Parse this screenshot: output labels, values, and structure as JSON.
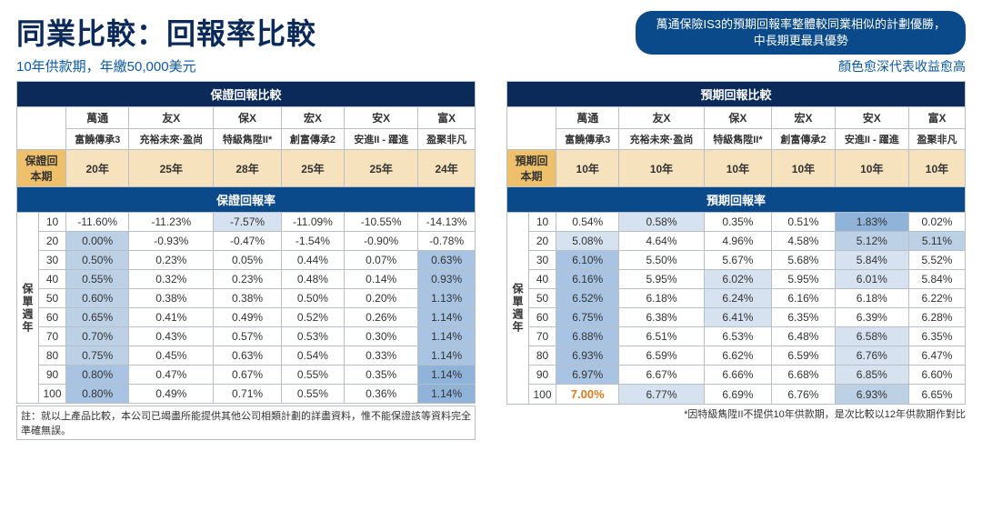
{
  "title": "同業比較：回報率比較",
  "subtitle": "10年供款期，年繳50,000美元",
  "pill_line1": "萬通保險IS3的預期回報率整體較同業相似的計劃優勝，",
  "pill_line2": "中長期更最具優勢",
  "legend_note": "顏色愈深代表收益愈高",
  "left": {
    "band": "保證回報比較",
    "companies": [
      "萬通",
      "友X",
      "保X",
      "宏X",
      "安X",
      "富X"
    ],
    "plans": [
      "富饒傳承3",
      "充裕未來·盈尚",
      "特級雋陞II*",
      "創富傳承2",
      "安進II - 躍進",
      "盈聚非凡"
    ],
    "break_even_label": "保證回本期",
    "break_even": [
      "20年",
      "25年",
      "28年",
      "25年",
      "25年",
      "24年"
    ],
    "rate_band": "保證回報率",
    "side_label": "保單週年",
    "years": [
      10,
      20,
      30,
      40,
      50,
      60,
      70,
      80,
      90,
      100
    ],
    "rows": [
      [
        "-11.60%",
        "-11.23%",
        "-7.57%",
        "-11.09%",
        "-10.55%",
        "-14.13%"
      ],
      [
        "0.00%",
        "-0.93%",
        "-0.47%",
        "-1.54%",
        "-0.90%",
        "-0.78%"
      ],
      [
        "0.50%",
        "0.23%",
        "0.05%",
        "0.44%",
        "0.07%",
        "0.63%"
      ],
      [
        "0.55%",
        "0.32%",
        "0.23%",
        "0.48%",
        "0.14%",
        "0.93%"
      ],
      [
        "0.60%",
        "0.38%",
        "0.38%",
        "0.50%",
        "0.20%",
        "1.13%"
      ],
      [
        "0.65%",
        "0.41%",
        "0.49%",
        "0.52%",
        "0.26%",
        "1.14%"
      ],
      [
        "0.70%",
        "0.43%",
        "0.57%",
        "0.53%",
        "0.30%",
        "1.14%"
      ],
      [
        "0.75%",
        "0.45%",
        "0.63%",
        "0.54%",
        "0.33%",
        "1.14%"
      ],
      [
        "0.80%",
        "0.47%",
        "0.67%",
        "0.55%",
        "0.35%",
        "1.14%"
      ],
      [
        "0.80%",
        "0.49%",
        "0.71%",
        "0.55%",
        "0.36%",
        "1.14%"
      ]
    ],
    "shades": [
      [
        "#ffffff",
        "#ffffff",
        "#d6e2f0",
        "#ffffff",
        "#ffffff",
        "#ffffff"
      ],
      [
        "#bcd0e6",
        "#ffffff",
        "#ffffff",
        "#ffffff",
        "#ffffff",
        "#ffffff"
      ],
      [
        "#bcd0e6",
        "#ffffff",
        "#ffffff",
        "#ffffff",
        "#ffffff",
        "#a8c4e2"
      ],
      [
        "#bcd0e6",
        "#ffffff",
        "#ffffff",
        "#ffffff",
        "#ffffff",
        "#a8c4e2"
      ],
      [
        "#bcd0e6",
        "#ffffff",
        "#ffffff",
        "#ffffff",
        "#ffffff",
        "#a8c4e2"
      ],
      [
        "#bcd0e6",
        "#ffffff",
        "#ffffff",
        "#ffffff",
        "#ffffff",
        "#a8c4e2"
      ],
      [
        "#bcd0e6",
        "#ffffff",
        "#ffffff",
        "#ffffff",
        "#ffffff",
        "#a8c4e2"
      ],
      [
        "#bcd0e6",
        "#ffffff",
        "#ffffff",
        "#ffffff",
        "#ffffff",
        "#a8c4e2"
      ],
      [
        "#a8c4e2",
        "#ffffff",
        "#ffffff",
        "#ffffff",
        "#ffffff",
        "#8fb3d9"
      ],
      [
        "#a8c4e2",
        "#ffffff",
        "#ffffff",
        "#ffffff",
        "#ffffff",
        "#8fb3d9"
      ]
    ],
    "footnote": "註：就以上產品比較，本公司已竭盡所能提供其他公司相類計劃的詳盡資料，惟不能保證該等資料完全準確無誤。"
  },
  "right": {
    "band": "預期回報比較",
    "companies": [
      "萬通",
      "友X",
      "保X",
      "宏X",
      "安X",
      "富X"
    ],
    "plans": [
      "富饒傳承3",
      "充裕未來·盈尚",
      "特級雋陞II*",
      "創富傳承2",
      "安進II - 躍進",
      "盈聚非凡"
    ],
    "break_even_label": "預期回本期",
    "break_even": [
      "10年",
      "10年",
      "10年",
      "10年",
      "10年",
      "10年"
    ],
    "rate_band": "預期回報率",
    "side_label": "保單週年",
    "years": [
      10,
      20,
      30,
      40,
      50,
      60,
      70,
      80,
      90,
      100
    ],
    "rows": [
      [
        "0.54%",
        "0.58%",
        "0.35%",
        "0.51%",
        "1.83%",
        "0.02%"
      ],
      [
        "5.08%",
        "4.64%",
        "4.96%",
        "4.58%",
        "5.12%",
        "5.11%"
      ],
      [
        "6.10%",
        "5.50%",
        "5.67%",
        "5.68%",
        "5.84%",
        "5.52%"
      ],
      [
        "6.16%",
        "5.95%",
        "6.02%",
        "5.95%",
        "6.01%",
        "5.84%"
      ],
      [
        "6.52%",
        "6.18%",
        "6.24%",
        "6.16%",
        "6.18%",
        "6.22%"
      ],
      [
        "6.75%",
        "6.38%",
        "6.41%",
        "6.35%",
        "6.39%",
        "6.28%"
      ],
      [
        "6.88%",
        "6.51%",
        "6.53%",
        "6.48%",
        "6.58%",
        "6.35%"
      ],
      [
        "6.93%",
        "6.59%",
        "6.62%",
        "6.59%",
        "6.76%",
        "6.47%"
      ],
      [
        "6.97%",
        "6.67%",
        "6.66%",
        "6.68%",
        "6.85%",
        "6.60%"
      ],
      [
        "7.00%",
        "6.77%",
        "6.69%",
        "6.76%",
        "6.93%",
        "6.65%"
      ]
    ],
    "shades": [
      [
        "#ffffff",
        "#d6e2f0",
        "#ffffff",
        "#ffffff",
        "#8fb3d9",
        "#ffffff"
      ],
      [
        "#d6e2f0",
        "#ffffff",
        "#ffffff",
        "#ffffff",
        "#bcd0e6",
        "#bcd0e6"
      ],
      [
        "#a8c4e2",
        "#ffffff",
        "#ffffff",
        "#ffffff",
        "#d6e2f0",
        "#ffffff"
      ],
      [
        "#a8c4e2",
        "#ffffff",
        "#d6e2f0",
        "#ffffff",
        "#d6e2f0",
        "#ffffff"
      ],
      [
        "#a8c4e2",
        "#ffffff",
        "#d6e2f0",
        "#ffffff",
        "#ffffff",
        "#ffffff"
      ],
      [
        "#a8c4e2",
        "#ffffff",
        "#d6e2f0",
        "#ffffff",
        "#ffffff",
        "#ffffff"
      ],
      [
        "#a8c4e2",
        "#ffffff",
        "#ffffff",
        "#ffffff",
        "#d6e2f0",
        "#ffffff"
      ],
      [
        "#a8c4e2",
        "#ffffff",
        "#ffffff",
        "#ffffff",
        "#d6e2f0",
        "#ffffff"
      ],
      [
        "#a8c4e2",
        "#ffffff",
        "#ffffff",
        "#ffffff",
        "#d6e2f0",
        "#ffffff"
      ],
      [
        "#ffffff",
        "#d6e2f0",
        "#ffffff",
        "#ffffff",
        "#bcd0e6",
        "#ffffff"
      ]
    ],
    "highlight_cell": {
      "row": 9,
      "col": 0
    },
    "footnote": "*因特級雋陞II不提供10年供款期，是次比較以12年供款期作對比"
  }
}
